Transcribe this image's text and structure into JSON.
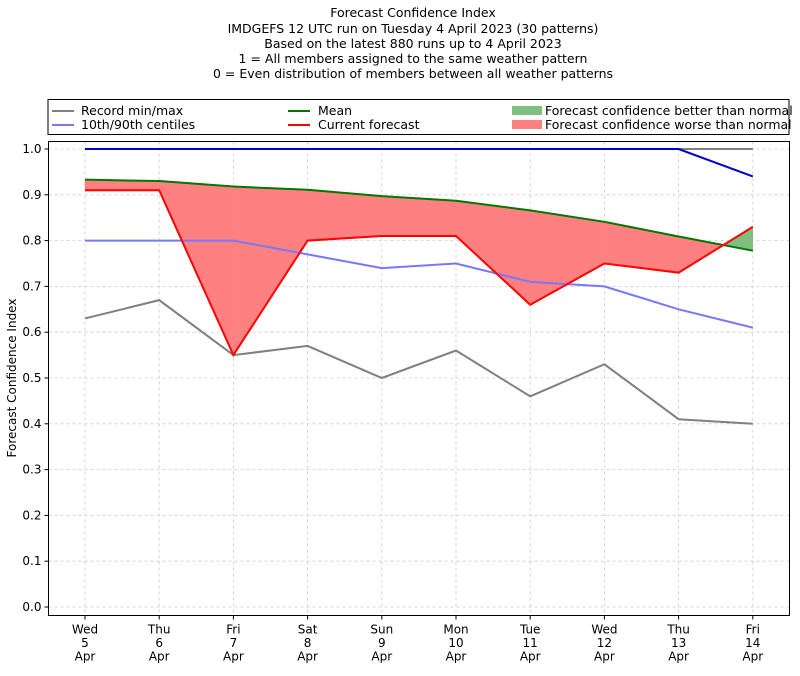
{
  "chart_data": {
    "type": "line",
    "title_lines": [
      "Forecast Confidence Index",
      "IMDGEFS 12 UTC run on Tuesday 4 April 2023 (30 patterns)",
      "Based on the latest 880 runs up to 4 April 2023",
      "1 = All members assigned to the same weather pattern",
      "0 = Even distribution of members between all weather patterns"
    ],
    "xlabel": "",
    "ylabel": "Forecast Confidence Index",
    "ylim": [
      0.0,
      1.0
    ],
    "yticks": [
      "0.0",
      "0.1",
      "0.2",
      "0.3",
      "0.4",
      "0.5",
      "0.6",
      "0.7",
      "0.8",
      "0.9",
      "1.0"
    ],
    "grid": true,
    "legend_position": "top",
    "categories": [
      [
        "Wed",
        "5",
        "Apr"
      ],
      [
        "Thu",
        "6",
        "Apr"
      ],
      [
        "Fri",
        "7",
        "Apr"
      ],
      [
        "Sat",
        "8",
        "Apr"
      ],
      [
        "Sun",
        "9",
        "Apr"
      ],
      [
        "Mon",
        "10",
        "Apr"
      ],
      [
        "Tue",
        "11",
        "Apr"
      ],
      [
        "Wed",
        "12",
        "Apr"
      ],
      [
        "Thu",
        "13",
        "Apr"
      ],
      [
        "Fri",
        "14",
        "Apr"
      ]
    ],
    "series": [
      {
        "name": "Record min/max",
        "role": "record_max",
        "color": "#808080",
        "values": [
          1.0,
          1.0,
          1.0,
          1.0,
          1.0,
          1.0,
          1.0,
          1.0,
          1.0,
          1.0
        ]
      },
      {
        "name": "Record min/max",
        "role": "record_min",
        "color": "#808080",
        "values": [
          0.63,
          0.67,
          0.55,
          0.57,
          0.5,
          0.56,
          0.46,
          0.53,
          0.41,
          0.4
        ]
      },
      {
        "name": "10th/90th centiles",
        "role": "p90",
        "color": "#0000cc",
        "values": [
          1.0,
          1.0,
          1.0,
          1.0,
          1.0,
          1.0,
          1.0,
          1.0,
          1.0,
          0.94
        ]
      },
      {
        "name": "10th/90th centiles",
        "role": "p10",
        "color": "#7777ff",
        "values": [
          0.8,
          0.8,
          0.8,
          0.77,
          0.74,
          0.75,
          0.71,
          0.7,
          0.65,
          0.61
        ]
      },
      {
        "name": "Mean",
        "role": "mean",
        "color": "#007700",
        "values": [
          0.933,
          0.93,
          0.918,
          0.911,
          0.897,
          0.887,
          0.866,
          0.841,
          0.809,
          0.778
        ]
      },
      {
        "name": "Current forecast",
        "role": "current",
        "color": "#ff0000",
        "values": [
          0.91,
          0.91,
          0.55,
          0.8,
          0.81,
          0.81,
          0.66,
          0.75,
          0.73,
          0.83
        ]
      }
    ],
    "fills": [
      {
        "name": "Forecast confidence better than normal",
        "color": "#7fbf7f"
      },
      {
        "name": "Forecast confidence worse than normal",
        "color": "#ff8080"
      }
    ],
    "legend": [
      {
        "label": "Record min/max",
        "kind": "line",
        "color": "#808080"
      },
      {
        "label": "10th/90th centiles",
        "kind": "line",
        "color": "#7777ff"
      },
      {
        "label": "Mean",
        "kind": "line",
        "color": "#007700"
      },
      {
        "label": "Current forecast",
        "kind": "line",
        "color": "#ff0000"
      },
      {
        "label": "Forecast confidence better than normal",
        "kind": "patch",
        "color": "#7fbf7f"
      },
      {
        "label": "Forecast confidence worse than normal",
        "kind": "patch",
        "color": "#ff8080"
      }
    ]
  }
}
